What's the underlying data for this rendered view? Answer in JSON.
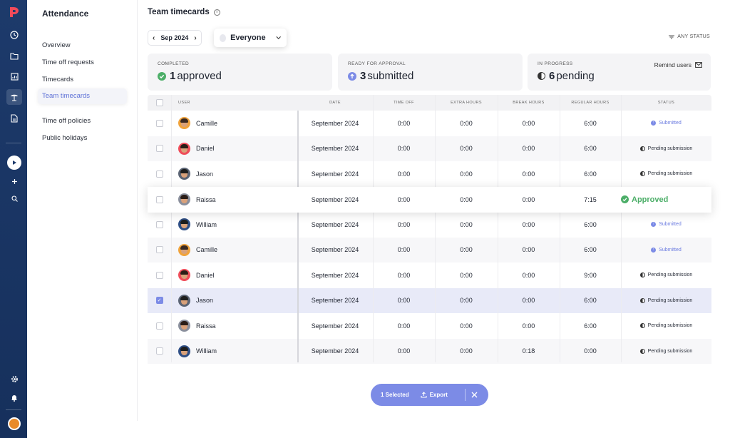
{
  "app": {
    "section_title": "Attendance",
    "page_title": "Team timecards"
  },
  "nav": {
    "items": [
      {
        "label": "Overview"
      },
      {
        "label": "Time off requests"
      },
      {
        "label": "Timecards"
      },
      {
        "label": "Team timecards",
        "active": true
      },
      {
        "label": "Time off policies"
      },
      {
        "label": "Public holidays"
      }
    ]
  },
  "toolbar": {
    "month_label": "Sep 2024",
    "group_label": "Everyone",
    "status_filter": "ANY STATUS"
  },
  "stats": {
    "completed": {
      "label": "COMPLETED",
      "count": "1",
      "text": "approved"
    },
    "ready": {
      "label": "READY FOR APPROVAL",
      "count": "3",
      "text": "submitted"
    },
    "progress": {
      "label": "IN PROGRESS",
      "count": "6",
      "text": "pending",
      "action": "Remind users"
    }
  },
  "table": {
    "headers": {
      "user": "USER",
      "date": "DATE",
      "time_off": "TIME OFF",
      "extra": "EXTRA HOURS",
      "break": "BREAK HOURS",
      "regular": "REGULAR HOURS",
      "status": "STATUS"
    },
    "rows": [
      {
        "name": "Camille",
        "date": "September 2024",
        "time_off": "0:00",
        "extra": "0:00",
        "break": "0:00",
        "regular": "6:00",
        "status": "Submitted"
      },
      {
        "name": "Daniel",
        "date": "September 2024",
        "time_off": "0:00",
        "extra": "0:00",
        "break": "0:00",
        "regular": "6:00",
        "status": "Pending submission"
      },
      {
        "name": "Jason",
        "date": "September 2024",
        "time_off": "0:00",
        "extra": "0:00",
        "break": "0:00",
        "regular": "6:00",
        "status": "Pending submission"
      },
      {
        "name": "Raissa",
        "date": "September 2024",
        "time_off": "0:00",
        "extra": "0:00",
        "break": "0:00",
        "regular": "7:15",
        "status": "Approved"
      },
      {
        "name": "William",
        "date": "September 2024",
        "time_off": "0:00",
        "extra": "0:00",
        "break": "0:00",
        "regular": "6:00",
        "status": "Submitted"
      },
      {
        "name": "Camille",
        "date": "September 2024",
        "time_off": "0:00",
        "extra": "0:00",
        "break": "0:00",
        "regular": "6:00",
        "status": "Submitted"
      },
      {
        "name": "Daniel",
        "date": "September 2024",
        "time_off": "0:00",
        "extra": "0:00",
        "break": "0:00",
        "regular": "9:00",
        "status": "Pending submission"
      },
      {
        "name": "Jason",
        "date": "September 2024",
        "time_off": "0:00",
        "extra": "0:00",
        "break": "0:00",
        "regular": "6:00",
        "status": "Pending submission"
      },
      {
        "name": "Raissa",
        "date": "September 2024",
        "time_off": "0:00",
        "extra": "0:00",
        "break": "0:00",
        "regular": "6:00",
        "status": "Pending submission"
      },
      {
        "name": "William",
        "date": "September 2024",
        "time_off": "0:00",
        "extra": "0:00",
        "break": "0:18",
        "regular": "0:00",
        "status": "Pending submission"
      }
    ]
  },
  "selection": {
    "count_label": "1 Selected",
    "export_label": "Export"
  },
  "colors": {
    "accent": "#7c8be6",
    "rail": "#1d3a6b",
    "approved": "#4cae68"
  }
}
